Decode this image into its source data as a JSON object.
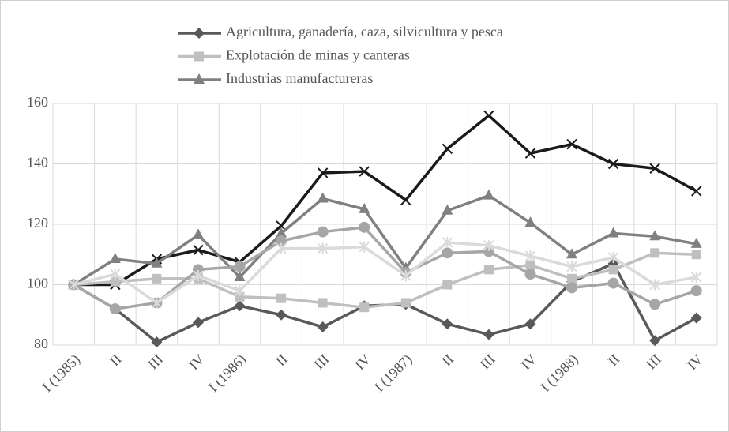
{
  "chart_data": {
    "type": "line",
    "categories": [
      "I (1985)",
      "II",
      "III",
      "IV",
      "I (1986)",
      "II",
      "III",
      "IV",
      "I (1987)",
      "II",
      "III",
      "IV",
      "I (1988)",
      "II",
      "III",
      "IV"
    ],
    "series": [
      {
        "name": "Agricultura, ganadería, caza, silvicultura y pesca",
        "color": "#595959",
        "marker": "diamond",
        "values": [
          100,
          92,
          81,
          87.5,
          93,
          90,
          86,
          93,
          93.5,
          87,
          83.5,
          87,
          101,
          107,
          81.5,
          89
        ]
      },
      {
        "name": "Explotación de minas y canteras",
        "color": "#bfbfbf",
        "marker": "square",
        "values": [
          100,
          101,
          102,
          102,
          96,
          95.5,
          94,
          92.5,
          94,
          100,
          105,
          106.5,
          102,
          105,
          110.5,
          110
        ]
      },
      {
        "name": "Industrias manufactureras",
        "color": "#808080",
        "marker": "triangle",
        "values": [
          100,
          108.5,
          107,
          116.5,
          102.5,
          117,
          128.5,
          125,
          105.5,
          124.5,
          129.5,
          120.5,
          110,
          117,
          116,
          113.5
        ]
      },
      {
        "color": "#1a1a1a",
        "marker": "x",
        "values": [
          100,
          100,
          108.5,
          111.5,
          107.5,
          119.5,
          137,
          137.5,
          128,
          145,
          156,
          143.5,
          146.5,
          140,
          138.5,
          131
        ]
      },
      {
        "color": "#a6a6a6",
        "marker": "circle",
        "values": [
          100,
          92,
          94,
          105,
          106,
          114.5,
          117.5,
          119,
          104,
          110.5,
          111,
          103.5,
          99,
          100.5,
          93.5,
          98
        ]
      },
      {
        "color": "#dadada",
        "marker": "star",
        "values": [
          100,
          103.5,
          94,
          103,
          98,
          112,
          112,
          112.5,
          103,
          114,
          113,
          109.5,
          106,
          109,
          100,
          102.5
        ]
      }
    ],
    "ylim": [
      80,
      160
    ],
    "yticks": [
      80,
      100,
      120,
      140,
      160
    ],
    "grid": true
  }
}
